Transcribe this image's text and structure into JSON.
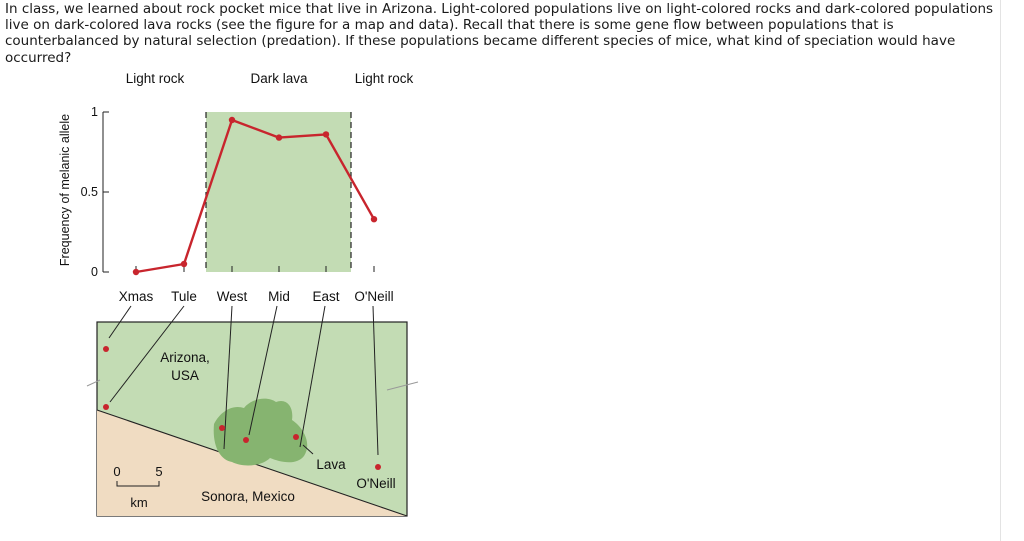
{
  "question": {
    "text": "In class, we learned about rock pocket mice that live in Arizona. Light-colored populations live on light-colored rocks and dark-colored populations live on dark-colored lava rocks (see the figure for a map and data). Recall that there is some gene flow between populations that is counterbalanced by natural selection (predation). If these populations became different species of mice, what kind of speciation would have occurred?"
  },
  "colors": {
    "line": "#c8252d",
    "lava_region": "#c3dcb4",
    "map_green": "#c3dcb4",
    "map_sand": "#f0dcc2",
    "lava_flow": "#86b470"
  },
  "chart_data": {
    "type": "line",
    "x": [
      "Xmas",
      "Tule",
      "West",
      "Mid",
      "East",
      "O'Neill"
    ],
    "ylabel": "Frequency of melanic allele",
    "ylim": [
      0,
      1
    ],
    "yticks": [
      "0",
      "0.5",
      "1"
    ],
    "series": [
      {
        "values": [
          0.0,
          0.05,
          0.95,
          0.84,
          0.86,
          0.33
        ]
      }
    ],
    "region_labels": [
      "Light rock",
      "Dark lava",
      "Light rock"
    ]
  },
  "map": {
    "label_arizona": "Arizona,",
    "label_usa": "USA",
    "label_sonora": "Sonora, Mexico",
    "label_lava": "Lava",
    "label_oneill": "O'Neill",
    "scale_zero": "0",
    "scale_five": "5",
    "scale_unit": "km"
  }
}
